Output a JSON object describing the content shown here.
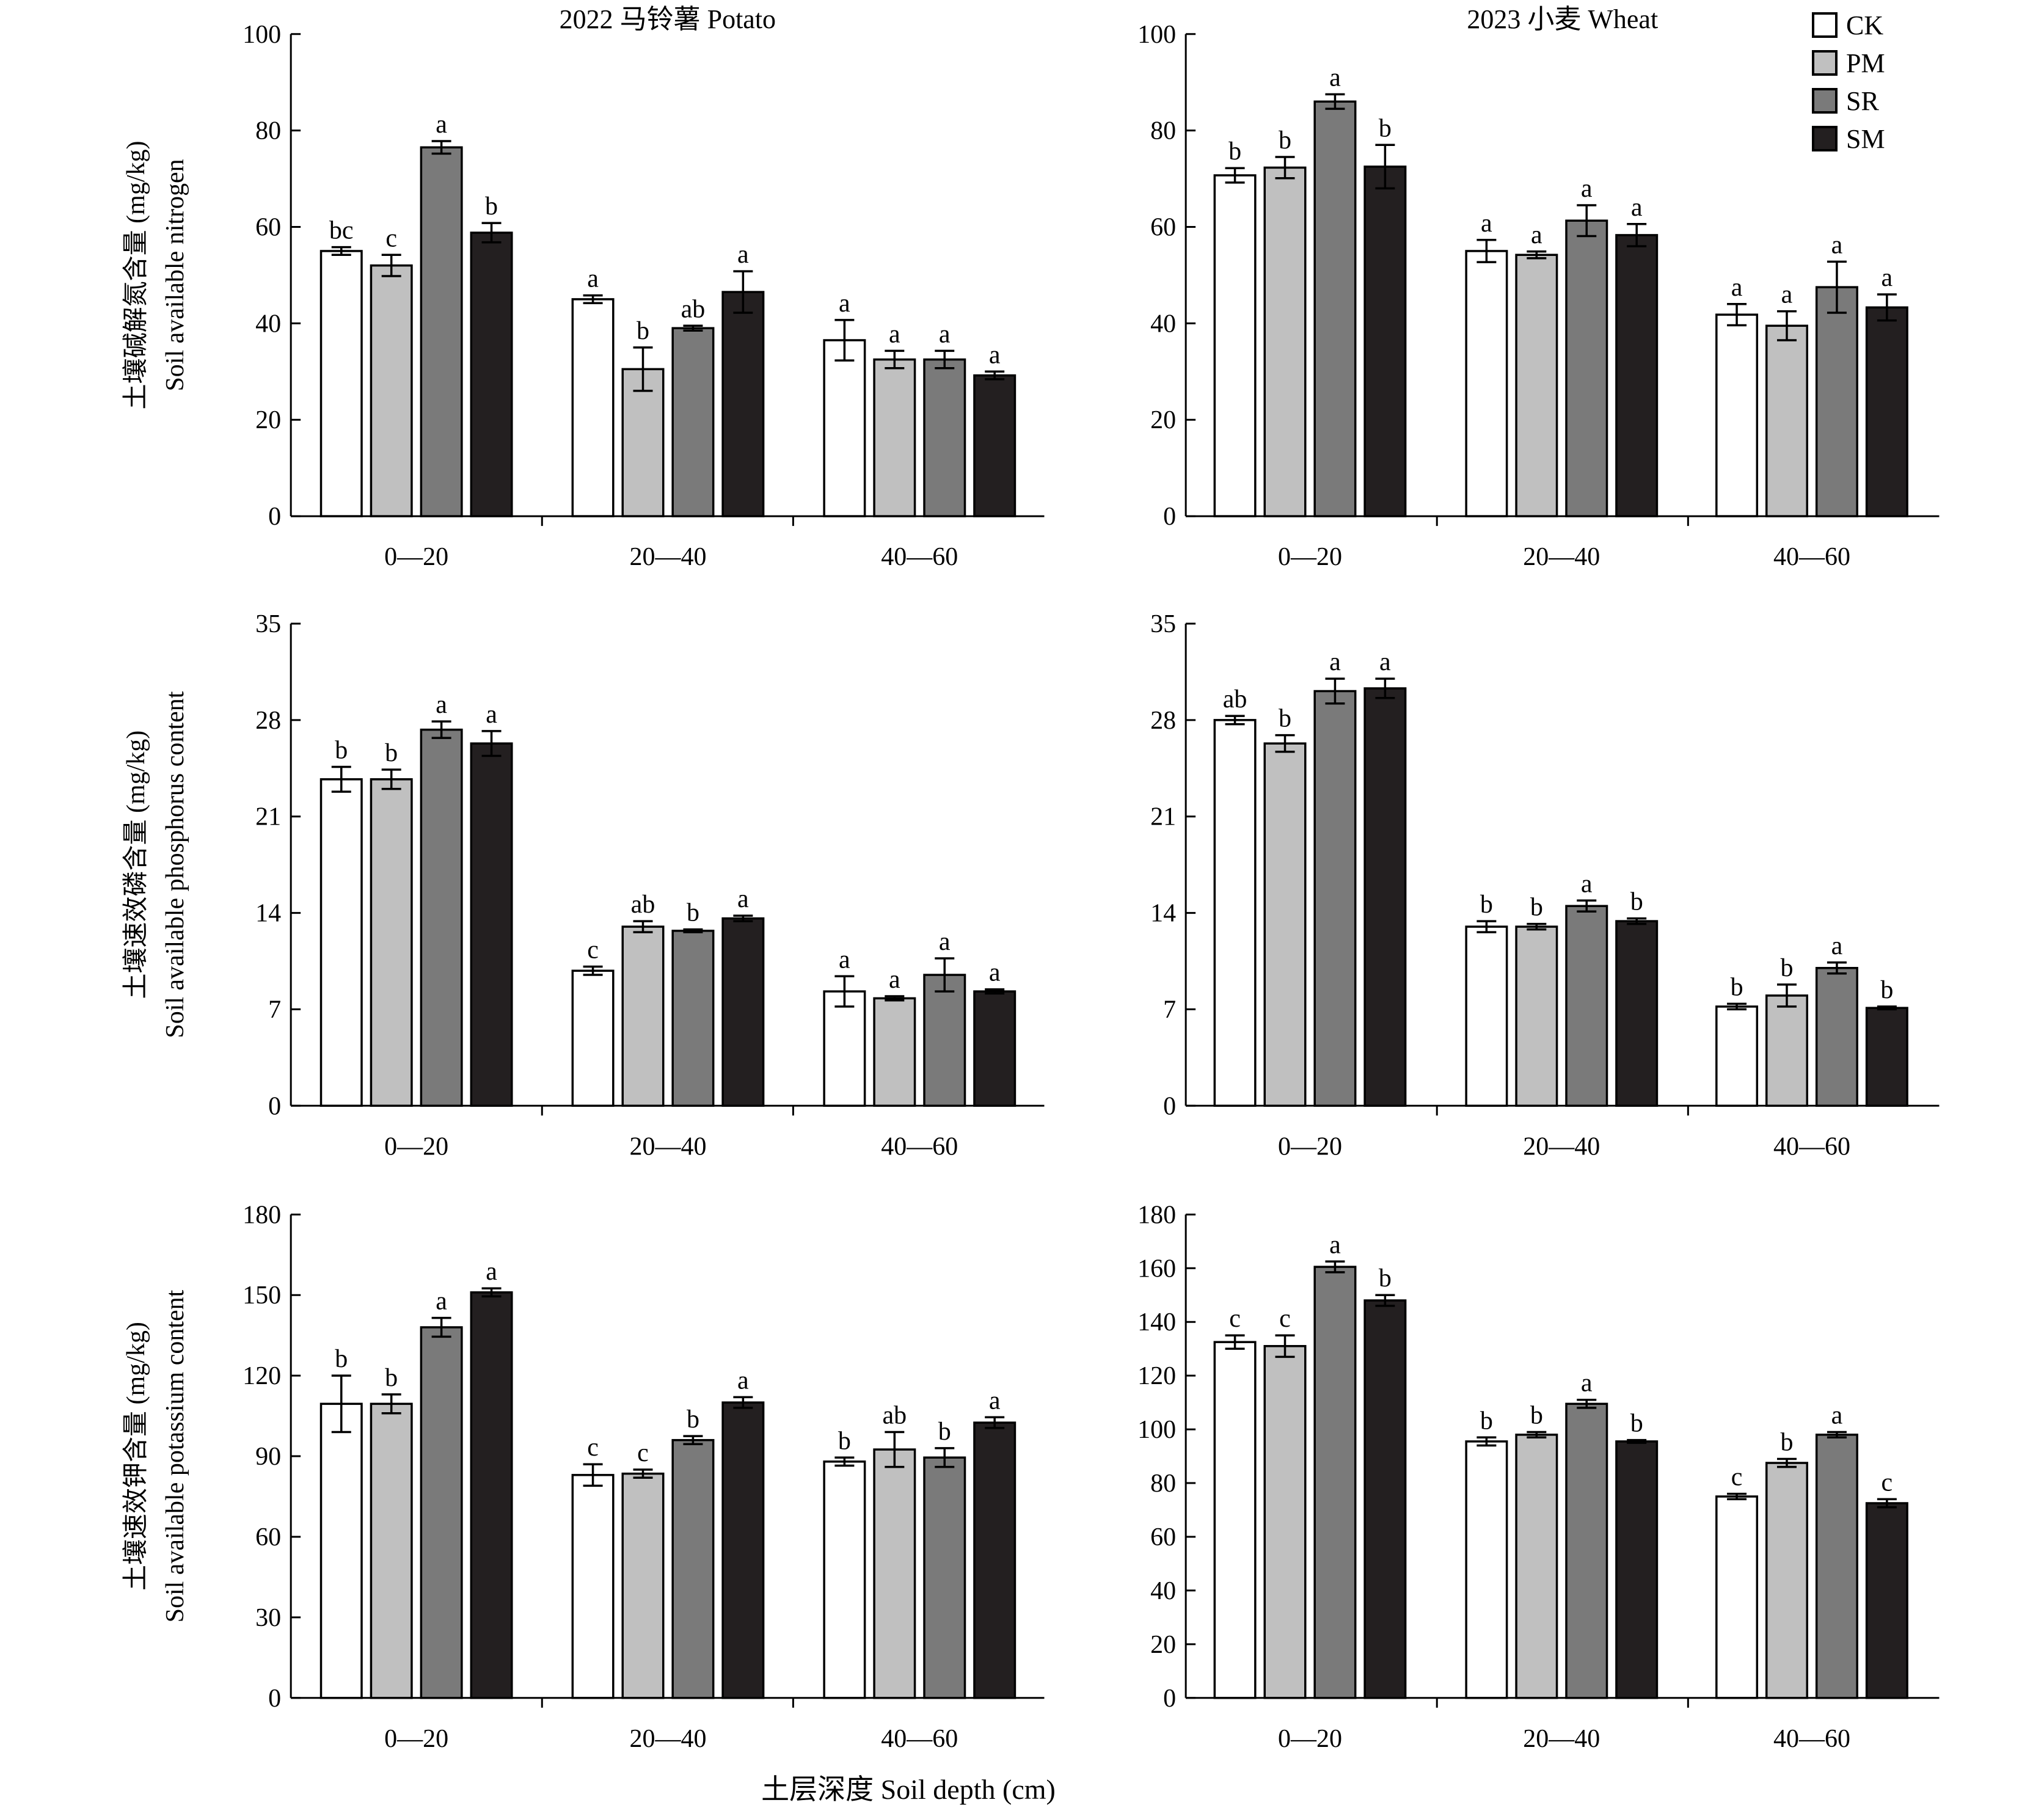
{
  "figure": {
    "x_title": "土层深度 Soil depth (cm)"
  },
  "legend": {
    "entries": [
      {
        "label": "CK",
        "color": "#ffffff"
      },
      {
        "label": "PM",
        "color": "#c0c0c0"
      },
      {
        "label": "SR",
        "color": "#7a7a7a"
      },
      {
        "label": "SM",
        "color": "#231f20"
      }
    ]
  },
  "chart_data": [
    {
      "type": "bar",
      "panel": "nitrogen-potato",
      "title": "2022 马铃薯 Potato",
      "ylabel_cn": "土壤碱解氮含量 (mg/kg)",
      "ylabel_en": "Soil available nitrogen",
      "xlabel": "",
      "ylim": [
        0,
        100
      ],
      "yticks": [
        0,
        20,
        40,
        60,
        80,
        100
      ],
      "categories": [
        "0—20",
        "20—40",
        "40—60"
      ],
      "series": [
        {
          "name": "CK",
          "values": [
            55,
            45,
            36.5
          ],
          "errors": [
            0.8,
            0.8,
            4.2
          ],
          "letters": [
            "bc",
            "a",
            "a"
          ]
        },
        {
          "name": "PM",
          "values": [
            52,
            30.5,
            32.5
          ],
          "errors": [
            2.2,
            4.5,
            1.8
          ],
          "letters": [
            "c",
            "b",
            "a"
          ]
        },
        {
          "name": "SR",
          "values": [
            76.5,
            39,
            32.5
          ],
          "errors": [
            1.3,
            0.5,
            1.8
          ],
          "letters": [
            "a",
            "ab",
            "a"
          ]
        },
        {
          "name": "SM",
          "values": [
            58.8,
            46.5,
            29.2
          ],
          "errors": [
            2,
            4.3,
            0.8
          ],
          "letters": [
            "b",
            "a",
            "a"
          ]
        }
      ]
    },
    {
      "type": "bar",
      "panel": "nitrogen-wheat",
      "title": "2023 小麦 Wheat",
      "ylabel_cn": "",
      "ylabel_en": "",
      "xlabel": "",
      "ylim": [
        0,
        100
      ],
      "yticks": [
        0,
        20,
        40,
        60,
        80,
        100
      ],
      "categories": [
        "0—20",
        "20—40",
        "40—60"
      ],
      "series": [
        {
          "name": "CK",
          "values": [
            70.7,
            55,
            41.8
          ],
          "errors": [
            1.5,
            2.3,
            2.2
          ],
          "letters": [
            "b",
            "a",
            "a"
          ]
        },
        {
          "name": "PM",
          "values": [
            72.3,
            54.2,
            39.5
          ],
          "errors": [
            2.2,
            0.7,
            3
          ],
          "letters": [
            "b",
            "a",
            "a"
          ]
        },
        {
          "name": "SR",
          "values": [
            86,
            61.3,
            47.5
          ],
          "errors": [
            1.5,
            3.2,
            5.3
          ],
          "letters": [
            "a",
            "a",
            "a"
          ]
        },
        {
          "name": "SM",
          "values": [
            72.5,
            58.3,
            43.3
          ],
          "errors": [
            4.5,
            2.3,
            2.7
          ],
          "letters": [
            "b",
            "a",
            "a"
          ]
        }
      ]
    },
    {
      "type": "bar",
      "panel": "phosphorus-potato",
      "title": "",
      "ylabel_cn": "土壤速效磷含量 (mg/kg)",
      "ylabel_en": "Soil available phosphorus content",
      "xlabel": "",
      "ylim": [
        0,
        35
      ],
      "yticks": [
        0,
        7,
        14,
        21,
        28,
        35
      ],
      "categories": [
        "0—20",
        "20—40",
        "40—60"
      ],
      "series": [
        {
          "name": "CK",
          "values": [
            23.7,
            9.8,
            8.3
          ],
          "errors": [
            0.9,
            0.3,
            1.1
          ],
          "letters": [
            "b",
            "c",
            "a"
          ]
        },
        {
          "name": "PM",
          "values": [
            23.7,
            13,
            7.8
          ],
          "errors": [
            0.7,
            0.4,
            0.15
          ],
          "letters": [
            "b",
            "ab",
            "a"
          ]
        },
        {
          "name": "SR",
          "values": [
            27.3,
            12.7,
            9.5
          ],
          "errors": [
            0.6,
            0.1,
            1.2
          ],
          "letters": [
            "a",
            "b",
            "a"
          ]
        },
        {
          "name": "SM",
          "values": [
            26.3,
            13.6,
            8.3
          ],
          "errors": [
            0.9,
            0.2,
            0.15
          ],
          "letters": [
            "a",
            "a",
            "a"
          ]
        }
      ]
    },
    {
      "type": "bar",
      "panel": "phosphorus-wheat",
      "title": "",
      "ylabel_cn": "",
      "ylabel_en": "",
      "xlabel": "",
      "ylim": [
        0,
        35
      ],
      "yticks": [
        0,
        7,
        14,
        21,
        28,
        35
      ],
      "categories": [
        "0—20",
        "20—40",
        "40—60"
      ],
      "series": [
        {
          "name": "CK",
          "values": [
            28,
            13,
            7.2
          ],
          "errors": [
            0.3,
            0.4,
            0.2
          ],
          "letters": [
            "ab",
            "b",
            "b"
          ]
        },
        {
          "name": "PM",
          "values": [
            26.3,
            13,
            8
          ],
          "errors": [
            0.6,
            0.2,
            0.8
          ],
          "letters": [
            "b",
            "b",
            "b"
          ]
        },
        {
          "name": "SR",
          "values": [
            30.1,
            14.5,
            10
          ],
          "errors": [
            0.9,
            0.4,
            0.4
          ],
          "letters": [
            "a",
            "a",
            "a"
          ]
        },
        {
          "name": "SM",
          "values": [
            30.3,
            13.4,
            7.1
          ],
          "errors": [
            0.7,
            0.2,
            0.1
          ],
          "letters": [
            "a",
            "b",
            "b"
          ]
        }
      ]
    },
    {
      "type": "bar",
      "panel": "potassium-potato",
      "title": "",
      "ylabel_cn": "土壤速效钾含量 (mg/kg)",
      "ylabel_en": "Soil available potassium content",
      "xlabel": "",
      "ylim": [
        0,
        180
      ],
      "yticks": [
        0,
        30,
        60,
        90,
        120,
        150,
        180
      ],
      "categories": [
        "0—20",
        "20—40",
        "40—60"
      ],
      "series": [
        {
          "name": "CK",
          "values": [
            109.5,
            83,
            88
          ],
          "errors": [
            10.5,
            4,
            1.5
          ],
          "letters": [
            "b",
            "c",
            "b"
          ]
        },
        {
          "name": "PM",
          "values": [
            109.5,
            83.5,
            92.5
          ],
          "errors": [
            3.5,
            1.5,
            6.5
          ],
          "letters": [
            "b",
            "c",
            "ab"
          ]
        },
        {
          "name": "SR",
          "values": [
            138,
            96,
            89.5
          ],
          "errors": [
            3.5,
            1.5,
            3.5
          ],
          "letters": [
            "a",
            "b",
            "b"
          ]
        },
        {
          "name": "SM",
          "values": [
            151,
            110,
            102.5
          ],
          "errors": [
            1.5,
            2,
            2
          ],
          "letters": [
            "a",
            "a",
            "a"
          ]
        }
      ]
    },
    {
      "type": "bar",
      "panel": "potassium-wheat",
      "title": "",
      "ylabel_cn": "",
      "ylabel_en": "",
      "xlabel": "",
      "ylim": [
        0,
        180
      ],
      "yticks": [
        0,
        20,
        40,
        60,
        80,
        100,
        120,
        140,
        160,
        180
      ],
      "categories": [
        "0—20",
        "20—40",
        "40—60"
      ],
      "series": [
        {
          "name": "CK",
          "values": [
            132.5,
            95.5,
            75
          ],
          "errors": [
            2.5,
            1.5,
            1
          ],
          "letters": [
            "c",
            "b",
            "c"
          ]
        },
        {
          "name": "PM",
          "values": [
            131,
            98,
            87.5
          ],
          "errors": [
            4,
            1,
            1.5
          ],
          "letters": [
            "c",
            "b",
            "b"
          ]
        },
        {
          "name": "SR",
          "values": [
            160.5,
            109.5,
            98
          ],
          "errors": [
            2,
            1.5,
            1
          ],
          "letters": [
            "a",
            "a",
            "a"
          ]
        },
        {
          "name": "SM",
          "values": [
            148,
            95.5,
            72.5
          ],
          "errors": [
            2,
            0.5,
            1.5
          ],
          "letters": [
            "b",
            "b",
            "c"
          ]
        }
      ]
    }
  ]
}
